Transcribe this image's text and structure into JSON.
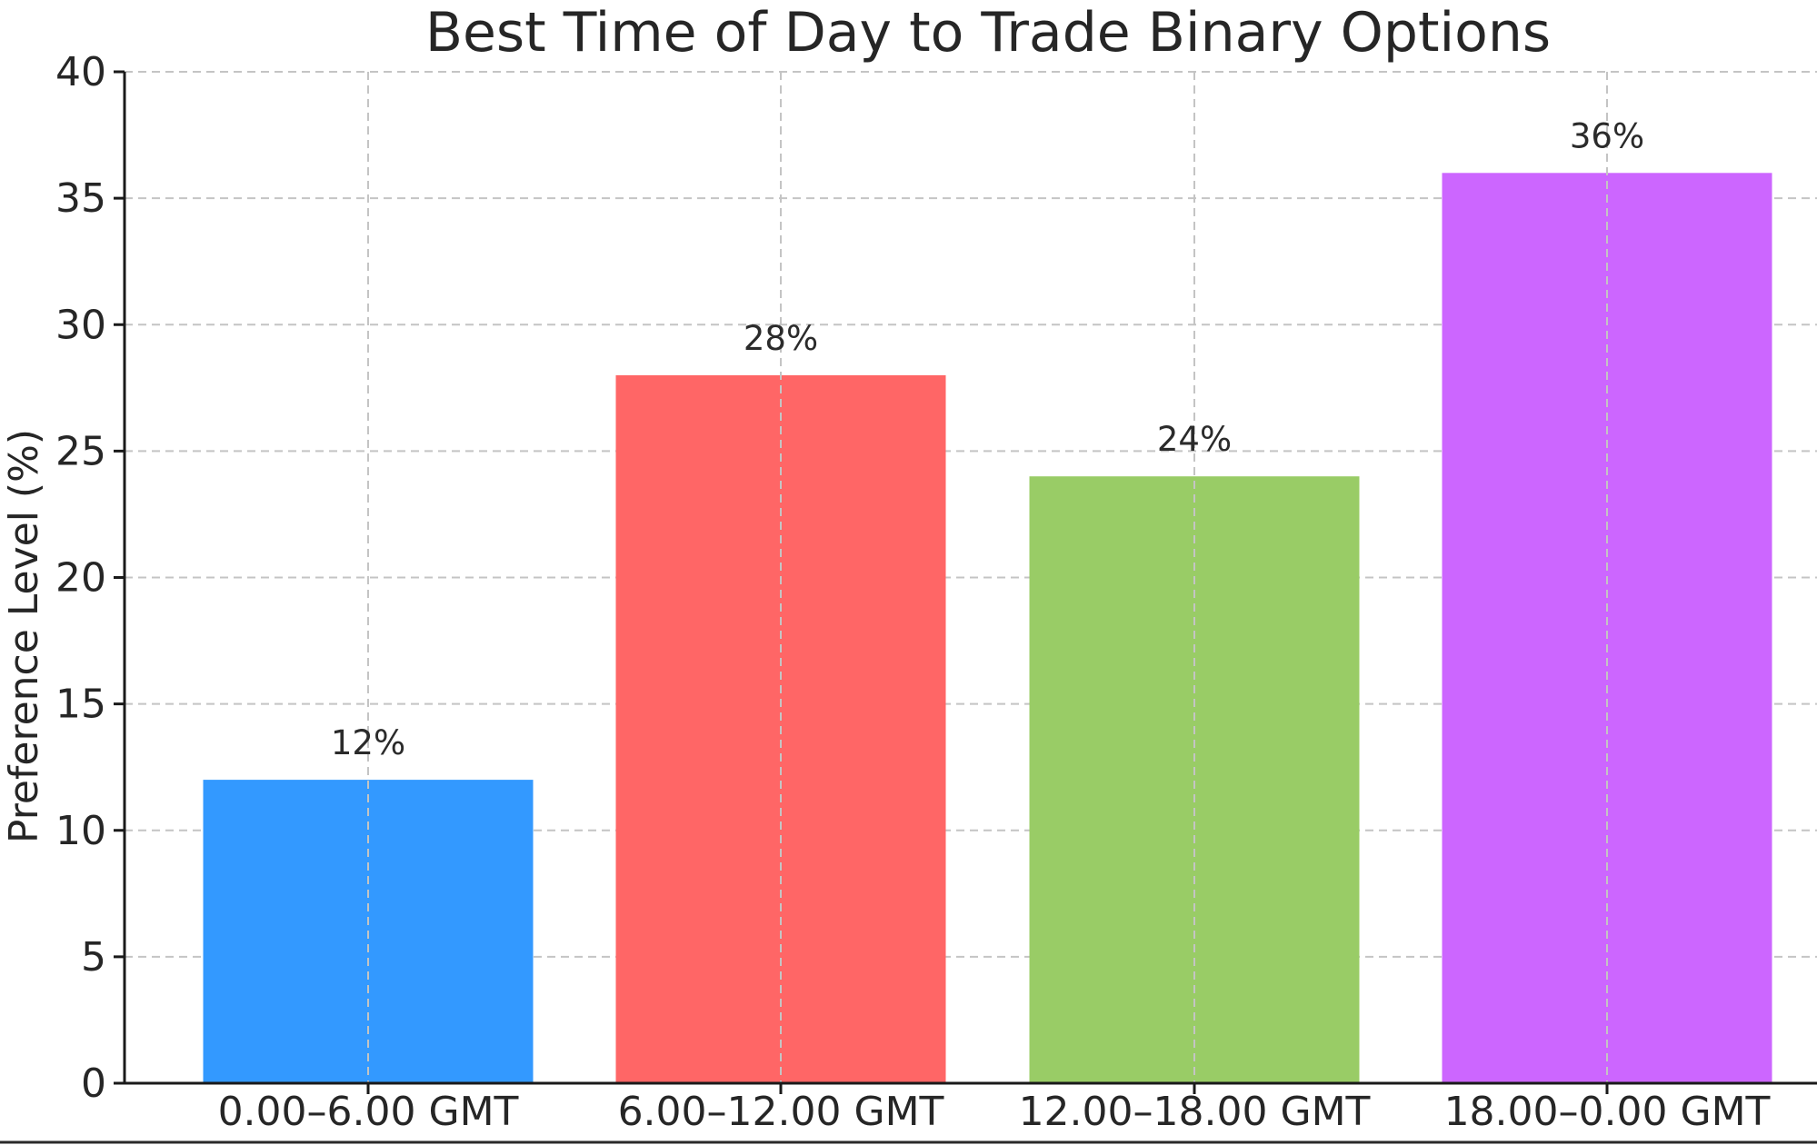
{
  "chart_data": {
    "type": "bar",
    "title": "Best Time of Day to Trade Binary Options",
    "xlabel": "",
    "ylabel": "Preference Level (%)",
    "ylim": [
      0,
      40
    ],
    "yticks": [
      0,
      5,
      10,
      15,
      20,
      25,
      30,
      35,
      40
    ],
    "categories": [
      "0.00–6.00 GMT",
      "6.00–12.00 GMT",
      "12.00–18.00 GMT",
      "18.00–0.00 GMT"
    ],
    "values": [
      12,
      28,
      24,
      36
    ],
    "data_labels": [
      "12%",
      "28%",
      "24%",
      "36%"
    ],
    "colors": [
      "#3399ff",
      "#ff6666",
      "#99cc66",
      "#cc66ff"
    ],
    "grid": true
  }
}
